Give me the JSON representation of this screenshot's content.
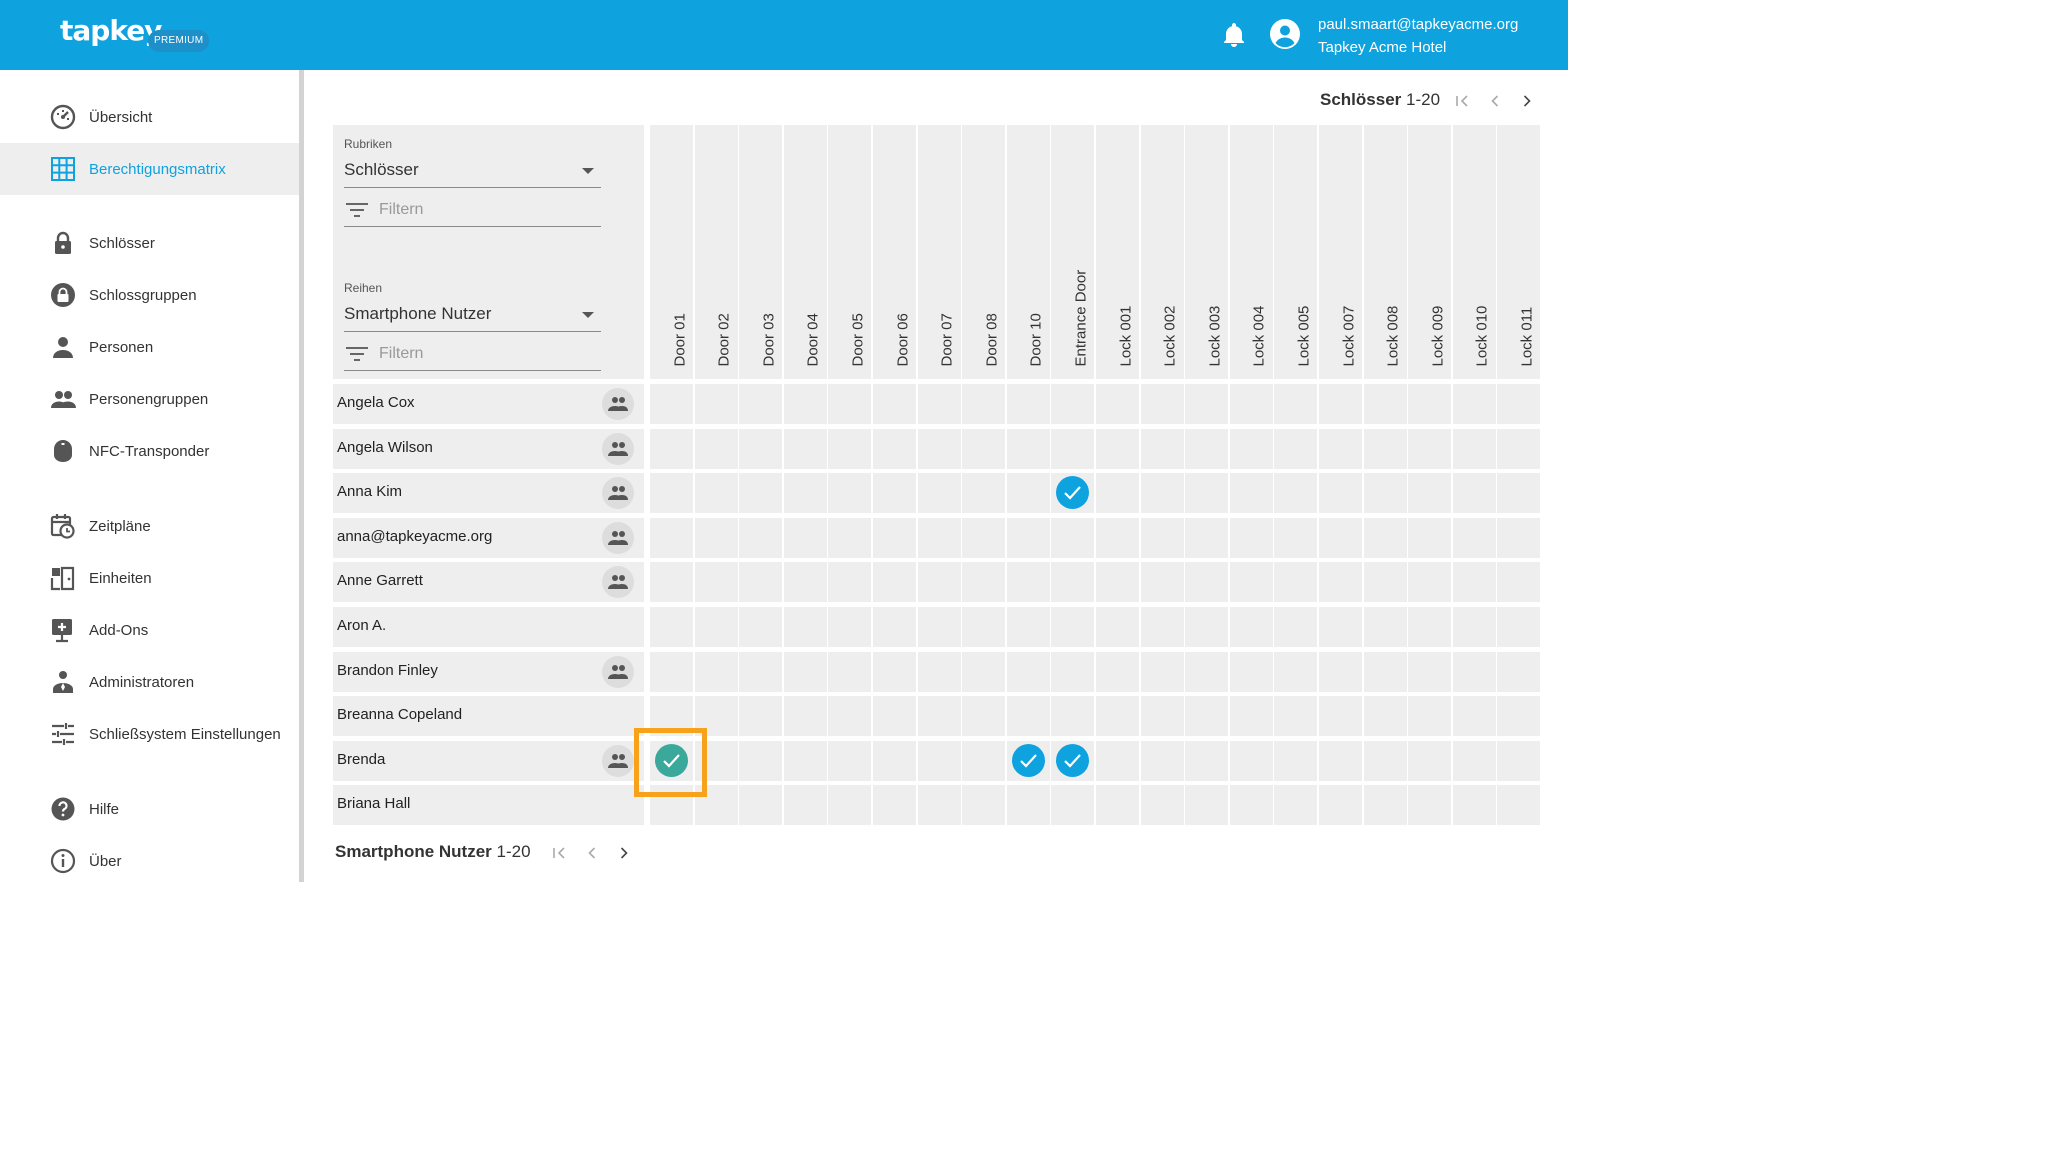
{
  "header": {
    "logo": "tapkey",
    "badge": "PREMIUM",
    "user_email": "paul.smaart@tapkeyacme.org",
    "user_org": "Tapkey Acme Hotel",
    "color": "#0ea2df"
  },
  "sidebar": {
    "items": [
      {
        "label": "Übersicht",
        "icon": "dashboard-icon"
      },
      {
        "label": "Berechtigungsmatrix",
        "icon": "grid-icon",
        "active": true
      },
      {
        "label": "Schlösser",
        "icon": "lock-icon"
      },
      {
        "label": "Schlossgruppen",
        "icon": "lock-group-icon"
      },
      {
        "label": "Personen",
        "icon": "person-icon"
      },
      {
        "label": "Personengruppen",
        "icon": "people-icon"
      },
      {
        "label": "NFC-Transponder",
        "icon": "transponder-icon"
      },
      {
        "label": "Zeitpläne",
        "icon": "calendar-clock-icon"
      },
      {
        "label": "Einheiten",
        "icon": "units-icon"
      },
      {
        "label": "Add-Ons",
        "icon": "add-on-icon"
      },
      {
        "label": "Administratoren",
        "icon": "admin-icon"
      },
      {
        "label": "Schließsystem Einstellungen",
        "icon": "settings-sliders-icon"
      },
      {
        "label": "Hilfe",
        "icon": "help-icon"
      },
      {
        "label": "Über",
        "icon": "info-icon"
      }
    ]
  },
  "column_pager": {
    "label": "Schlösser",
    "range": "1-20"
  },
  "row_pager": {
    "label": "Smartphone Nutzer",
    "range": "1-20"
  },
  "filters": {
    "columns_label": "Rubriken",
    "columns_value": "Schlösser",
    "columns_filter_placeholder": "Filtern",
    "rows_label": "Reihen",
    "rows_value": "Smartphone Nutzer",
    "rows_filter_placeholder": "Filtern"
  },
  "matrix": {
    "columns": [
      "Door 01",
      "Door 02",
      "Door 03",
      "Door 04",
      "Door 05",
      "Door 06",
      "Door 07",
      "Door 08",
      "Door 10",
      "Entrance Door",
      "Lock 001",
      "Lock 002",
      "Lock 003",
      "Lock 004",
      "Lock 005",
      "Lock 007",
      "Lock 008",
      "Lock 009",
      "Lock 010",
      "Lock 011"
    ],
    "rows": [
      {
        "name": "Angela Cox",
        "group": true,
        "checked": []
      },
      {
        "name": "Angela Wilson",
        "group": true,
        "checked": []
      },
      {
        "name": "Anna Kim",
        "group": true,
        "checked": [
          9
        ]
      },
      {
        "name": "anna@tapkeyacme.org",
        "group": true,
        "checked": []
      },
      {
        "name": "Anne Garrett",
        "group": true,
        "checked": []
      },
      {
        "name": "Aron A.",
        "group": false,
        "checked": []
      },
      {
        "name": "Brandon Finley",
        "group": true,
        "checked": []
      },
      {
        "name": "Breanna Copeland",
        "group": false,
        "checked": []
      },
      {
        "name": "Brenda",
        "group": true,
        "checked": [
          0,
          8,
          9
        ],
        "highlighted": [
          0
        ]
      },
      {
        "name": "Briana Hall",
        "group": false,
        "checked": []
      }
    ],
    "check_color": "#0ea2df",
    "highlight_check_color": "#3aa89a",
    "highlight_border_color": "#f7a21b"
  }
}
